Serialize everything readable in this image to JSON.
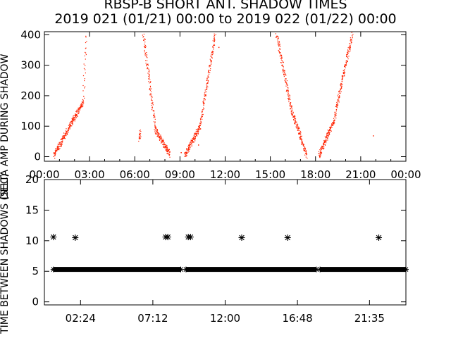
{
  "title": "RBSP-B SHORT ANT. SHADOW TIMES",
  "subtitle": "2019 021 (01/21) 00:00 to 2019 022 (01/22) 00:00",
  "colors": {
    "axes": "#000000",
    "points": "#ff2200",
    "background": "#ffffff"
  },
  "chart_data": [
    {
      "type": "scatter",
      "ylabel": "DELTA AMP DURING SHADOW",
      "x_unit": "hours",
      "xlim": [
        0,
        24
      ],
      "ylim": [
        -15,
        410
      ],
      "x_tick_labels": [
        "00:00",
        "03:00",
        "06:00",
        "09:00",
        "12:00",
        "15:00",
        "18:00",
        "21:00",
        "00:00"
      ],
      "x_tick_values": [
        0,
        3,
        6,
        9,
        12,
        15,
        18,
        21,
        24
      ],
      "y_ticks": [
        0,
        100,
        200,
        300,
        400
      ],
      "grid": false,
      "bands": [
        {
          "x0": 0.6,
          "x1": 2.55,
          "y0": 5,
          "y1": 180
        },
        {
          "x0": 2.55,
          "x1": 2.75,
          "y0": 170,
          "y1": 400
        },
        {
          "x0": 6.25,
          "x1": 6.35,
          "y0": 60,
          "y1": 80
        },
        {
          "x0": 6.55,
          "x1": 7.35,
          "y0": 400,
          "y1": 95
        },
        {
          "x0": 7.35,
          "x1": 8.3,
          "y0": 90,
          "y1": 8
        },
        {
          "x0": 9.3,
          "x1": 10.3,
          "y0": 5,
          "y1": 100
        },
        {
          "x0": 10.3,
          "x1": 11.3,
          "y0": 100,
          "y1": 400
        },
        {
          "x0": 15.4,
          "x1": 16.35,
          "y0": 400,
          "y1": 160
        },
        {
          "x0": 16.35,
          "x1": 17.4,
          "y0": 160,
          "y1": 5
        },
        {
          "x0": 18.2,
          "x1": 19.2,
          "y0": 5,
          "y1": 120
        },
        {
          "x0": 19.2,
          "x1": 20.4,
          "y0": 120,
          "y1": 400
        }
      ],
      "outliers": [
        {
          "x": 8.25,
          "y": 25
        },
        {
          "x": 9.05,
          "y": 15
        },
        {
          "x": 10.2,
          "y": 40
        },
        {
          "x": 18.35,
          "y": 15
        },
        {
          "x": 21.8,
          "y": 70
        },
        {
          "x": 11.55,
          "y": 360
        }
      ]
    },
    {
      "type": "scatter",
      "ylabel": "TIME BETWEEN SHADOWS (SEC)",
      "x_unit": "hours",
      "xlim": [
        0,
        24
      ],
      "ylim": [
        -0.5,
        20
      ],
      "x_tick_labels": [
        "02:24",
        "07:12",
        "12:00",
        "16:48",
        "21:35"
      ],
      "x_tick_values": [
        2.4,
        7.2,
        12.0,
        16.8,
        21.583
      ],
      "y_ticks": [
        0,
        5,
        10,
        15,
        20
      ],
      "grid": false,
      "marker": "asterisk",
      "baseline_value": 5.3,
      "baseline_segments": [
        [
          0.6,
          9.05
        ],
        [
          9.4,
          18.05
        ],
        [
          18.3,
          24.0
        ]
      ],
      "points": [
        {
          "x": 0.6,
          "y": 10.6
        },
        {
          "x": 2.05,
          "y": 10.5
        },
        {
          "x": 8.05,
          "y": 10.6
        },
        {
          "x": 8.2,
          "y": 10.6
        },
        {
          "x": 9.55,
          "y": 10.6
        },
        {
          "x": 9.7,
          "y": 10.6
        },
        {
          "x": 13.1,
          "y": 10.5
        },
        {
          "x": 16.15,
          "y": 10.5
        },
        {
          "x": 22.2,
          "y": 10.5
        }
      ]
    }
  ]
}
